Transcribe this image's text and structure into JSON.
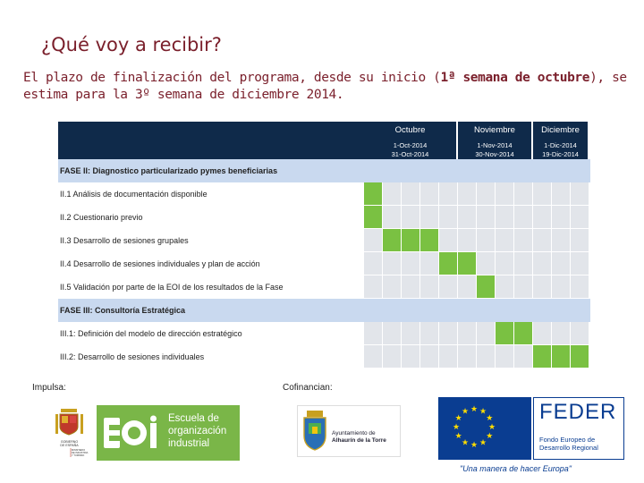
{
  "slide": {
    "title": "¿Qué voy a recibir?",
    "intro_before": "El plazo de finalización del programa, desde su inicio (",
    "intro_bold": "1ª semana de octubre",
    "intro_after": "), se estima para la 3º semana de diciembre 2014."
  },
  "gantt": {
    "months": [
      {
        "name": "Octubre",
        "start": "1-Oct-2014",
        "end": "31-Oct-2014"
      },
      {
        "name": "Noviembre",
        "start": "1-Nov-2014",
        "end": "30-Nov-2014"
      },
      {
        "name": "Diciembre",
        "start": "1-Dic-2014",
        "end": "19-Dic-2014"
      }
    ],
    "weeks_per_month": [
      5,
      4,
      3
    ],
    "rows": [
      {
        "label": "FASE II: Diagnostico particularizado pymes beneficiarias",
        "phase": true,
        "active": []
      },
      {
        "label": "II.1 Análisis de documentación disponible",
        "phase": false,
        "active": [
          0
        ]
      },
      {
        "label": "II.2 Cuestionario previo",
        "phase": false,
        "active": [
          0
        ]
      },
      {
        "label": "II.3 Desarrollo de sesiones grupales",
        "phase": false,
        "active": [
          1,
          2,
          3
        ]
      },
      {
        "label": "II.4 Desarrollo de sesiones individuales y plan de acción",
        "phase": false,
        "active": [
          4,
          5
        ]
      },
      {
        "label": "II.5 Validación por parte de la EOI de los resultados de la Fase",
        "phase": false,
        "active": [
          6
        ]
      },
      {
        "label": "FASE III: Consultoría Estratégica",
        "phase": true,
        "active": []
      },
      {
        "label": "III.1: Definición del modelo de dirección estratégico",
        "phase": false,
        "active": [
          7,
          8
        ]
      },
      {
        "label": "III.2: Desarrollo de sesiones individuales",
        "phase": false,
        "active": [
          9,
          10,
          11
        ]
      }
    ],
    "colors": {
      "header": "#0f2a4a",
      "active": "#7ac142",
      "phase": "#c9d9ef",
      "cell": "#e2e5ea"
    }
  },
  "footer": {
    "impulsa_label": "Impulsa:",
    "cofinancian_label": "Cofinancian:",
    "gobierno_text": "GOBIERNO DE ESPAÑA",
    "ministerio_text": "MINISTERIO DE INDUSTRIA, ENERGÍA Y TURISMO",
    "eoi_line1": "Escuela de",
    "eoi_line2": "organización",
    "eoi_line3": "industrial",
    "ayto_line1": "Ayuntamiento de",
    "ayto_line2": "Alhaurín de la Torre",
    "feder_title": "FEDER",
    "feder_line1": "Fondo Europeo de",
    "feder_line2": "Desarrollo Regional",
    "eu_quote": "\"Una manera de hacer Europa\""
  }
}
